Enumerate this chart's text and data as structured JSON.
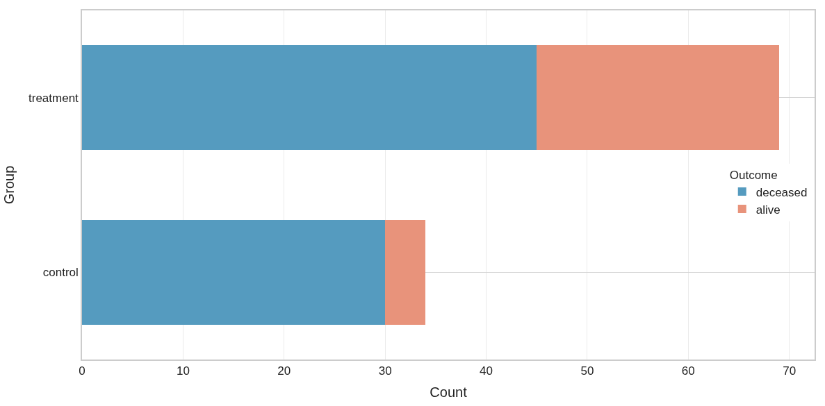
{
  "chart_data": {
    "type": "bar",
    "orientation": "horizontal",
    "stacked": true,
    "xlabel": "Count",
    "ylabel": "Group",
    "legend_title": "Outcome",
    "categories": [
      "treatment",
      "control"
    ],
    "series": [
      {
        "name": "deceased",
        "color": "#559bbf",
        "values": [
          45,
          30
        ]
      },
      {
        "name": "alive",
        "color": "#e8937b",
        "values": [
          24,
          4
        ]
      }
    ],
    "xlim": [
      0,
      72.5
    ],
    "xticks": [
      0,
      10,
      20,
      30,
      40,
      50,
      60,
      70
    ],
    "grid": true,
    "legend": "right"
  }
}
